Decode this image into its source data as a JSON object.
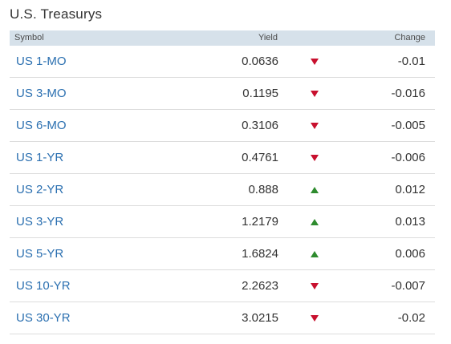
{
  "title": "U.S. Treasurys",
  "columns": {
    "symbol": "Symbol",
    "yield": "Yield",
    "change": "Change"
  },
  "colors": {
    "link": "#2a6fb0",
    "header_bg": "#d6e1ea",
    "down": "#c8102e",
    "up": "#2e8b2e"
  },
  "rows": [
    {
      "symbol": "US 1-MO",
      "yield": "0.0636",
      "direction": "down",
      "change": "-0.01"
    },
    {
      "symbol": "US 3-MO",
      "yield": "0.1195",
      "direction": "down",
      "change": "-0.016"
    },
    {
      "symbol": "US 6-MO",
      "yield": "0.3106",
      "direction": "down",
      "change": "-0.005"
    },
    {
      "symbol": "US 1-YR",
      "yield": "0.4761",
      "direction": "down",
      "change": "-0.006"
    },
    {
      "symbol": "US 2-YR",
      "yield": "0.888",
      "direction": "up",
      "change": "0.012"
    },
    {
      "symbol": "US 3-YR",
      "yield": "1.2179",
      "direction": "up",
      "change": "0.013"
    },
    {
      "symbol": "US 5-YR",
      "yield": "1.6824",
      "direction": "up",
      "change": "0.006"
    },
    {
      "symbol": "US 10-YR",
      "yield": "2.2623",
      "direction": "down",
      "change": "-0.007"
    },
    {
      "symbol": "US 30-YR",
      "yield": "3.0215",
      "direction": "down",
      "change": "-0.02"
    }
  ]
}
